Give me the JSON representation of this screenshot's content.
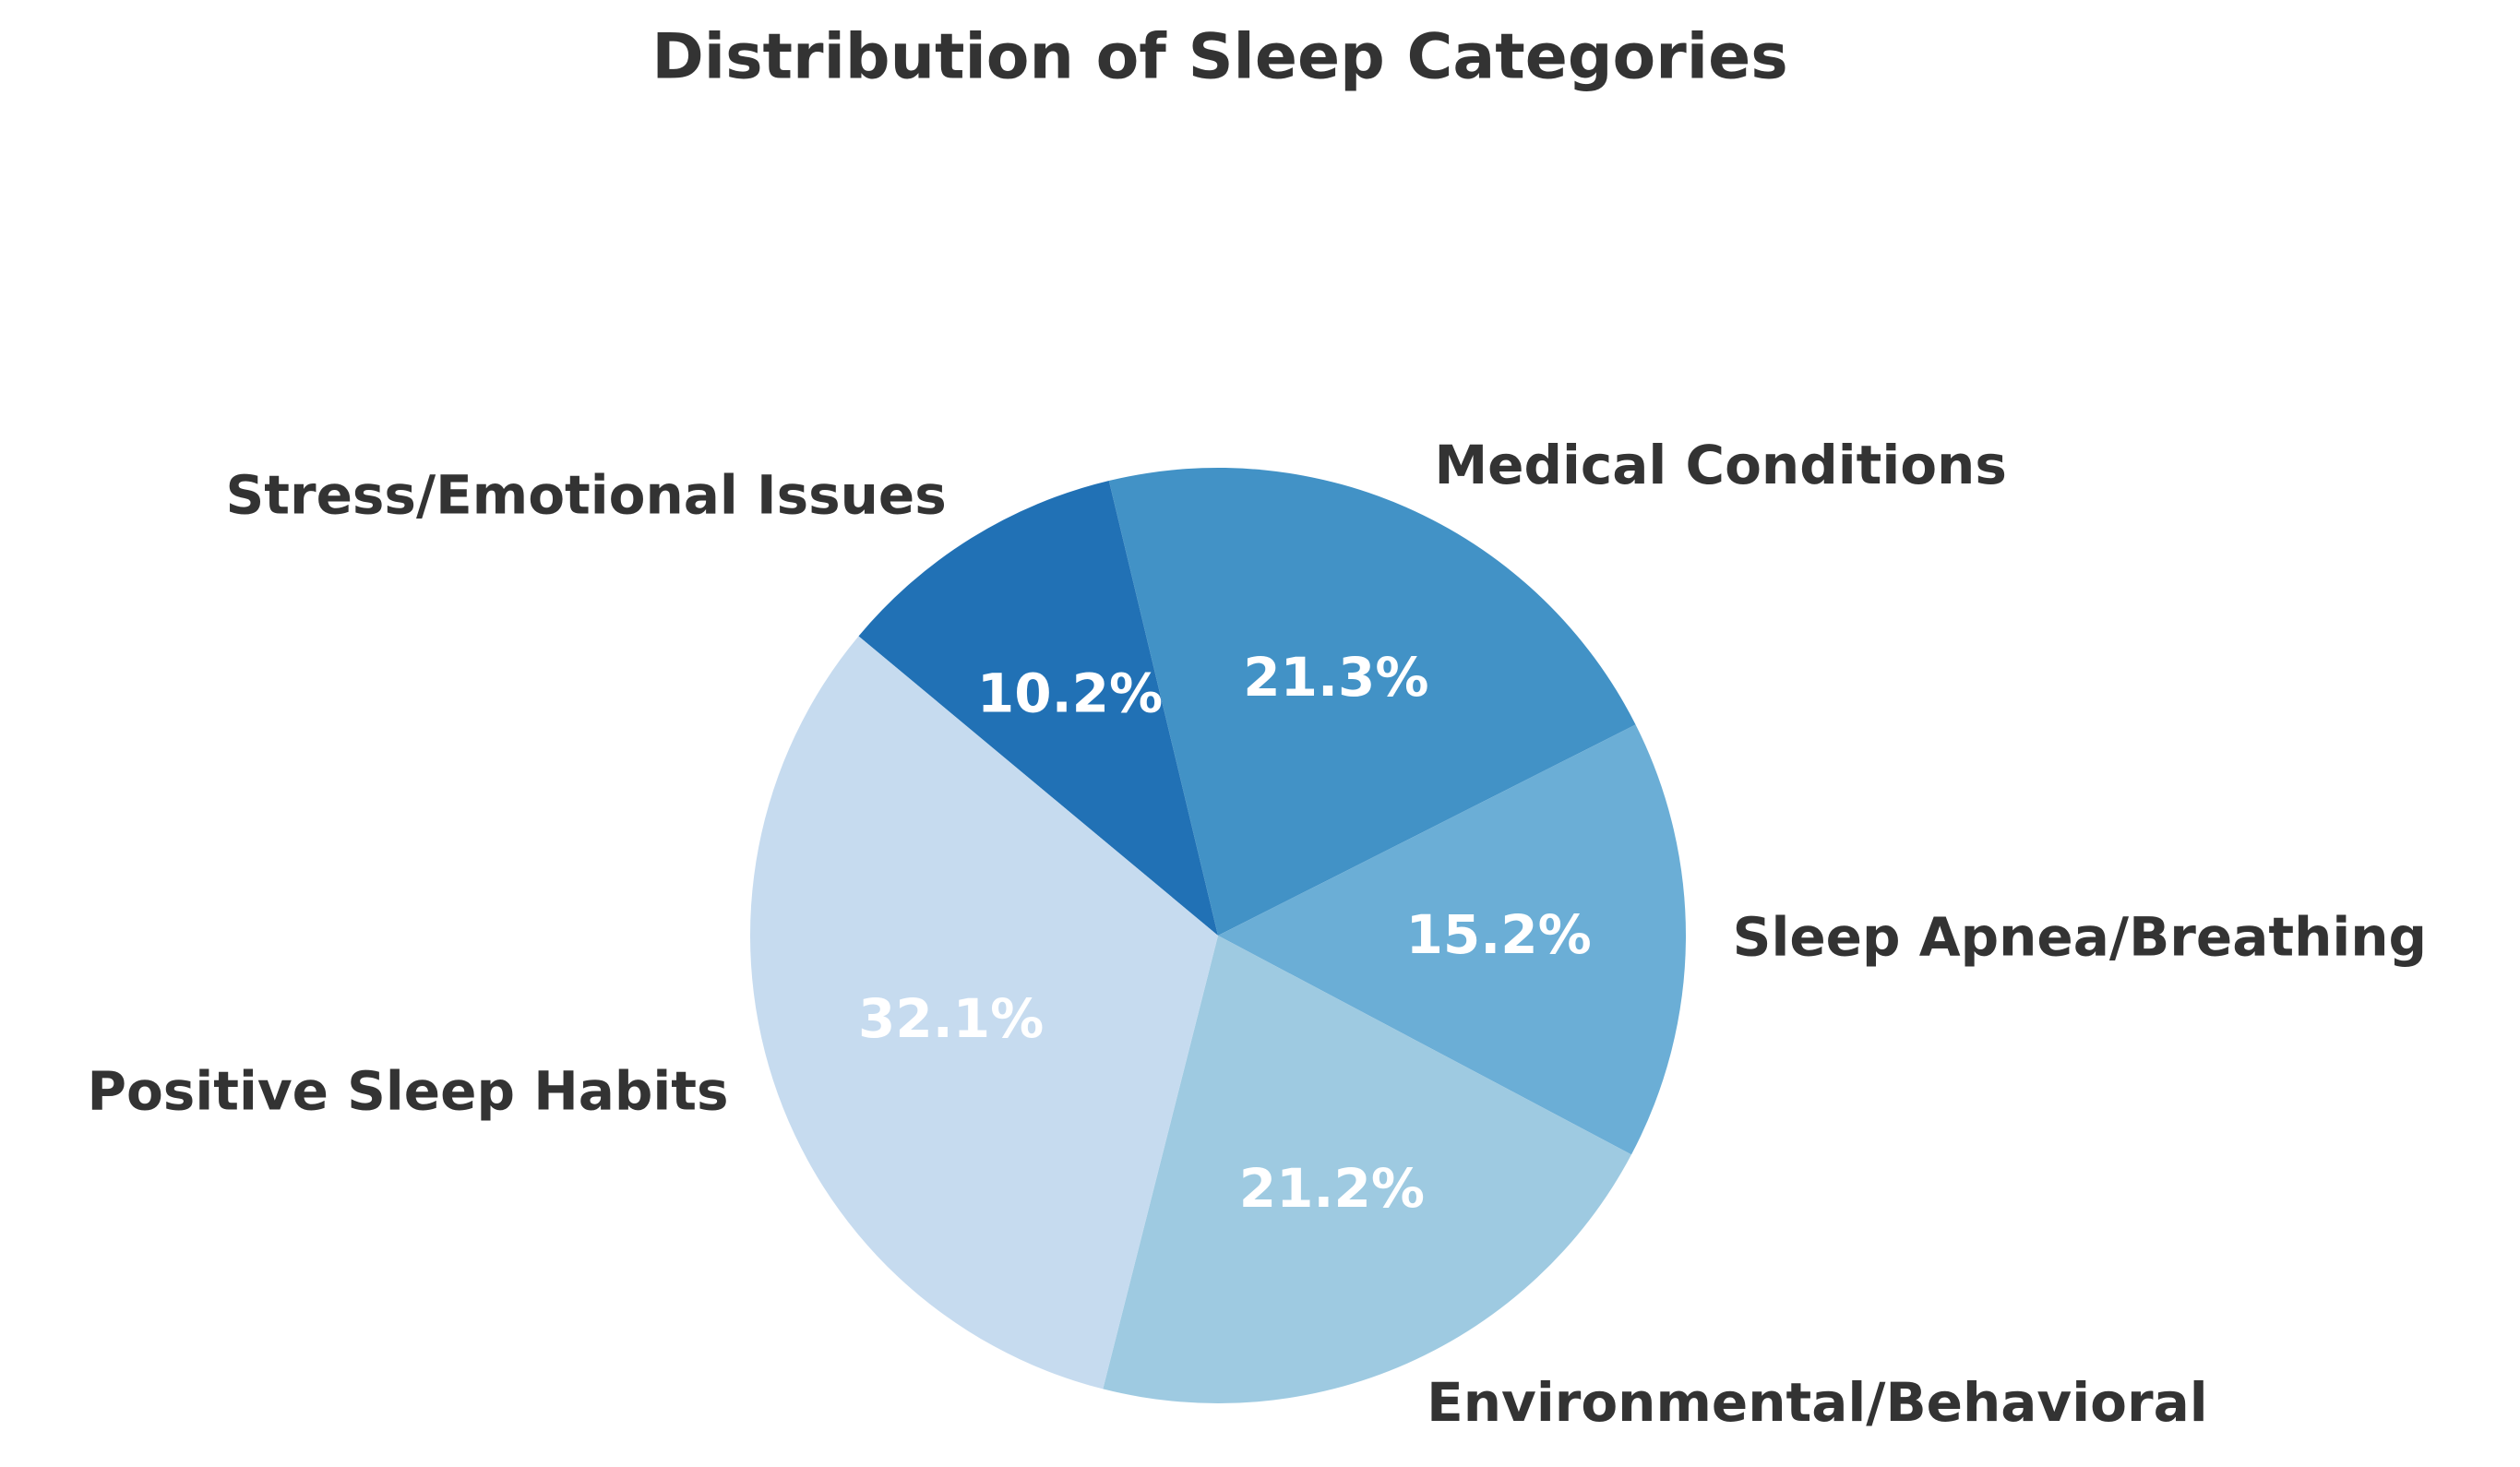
{
  "chart_data": {
    "type": "pie",
    "title": "Distribution of Sleep Categories",
    "categories": [
      "Stress/Emotional Issues",
      "Medical Conditions",
      "Sleep Apnea/Breathing",
      "Environmental/Behavioral",
      "Positive Sleep Habits"
    ],
    "values": [
      10.2,
      21.3,
      15.2,
      21.2,
      32.1
    ],
    "value_labels": [
      "10.2%",
      "21.3%",
      "15.2%",
      "21.2%",
      "32.1%"
    ],
    "colors": [
      "#2171b5",
      "#4292c6",
      "#6baed6",
      "#9ecae1",
      "#c6dbef"
    ]
  }
}
